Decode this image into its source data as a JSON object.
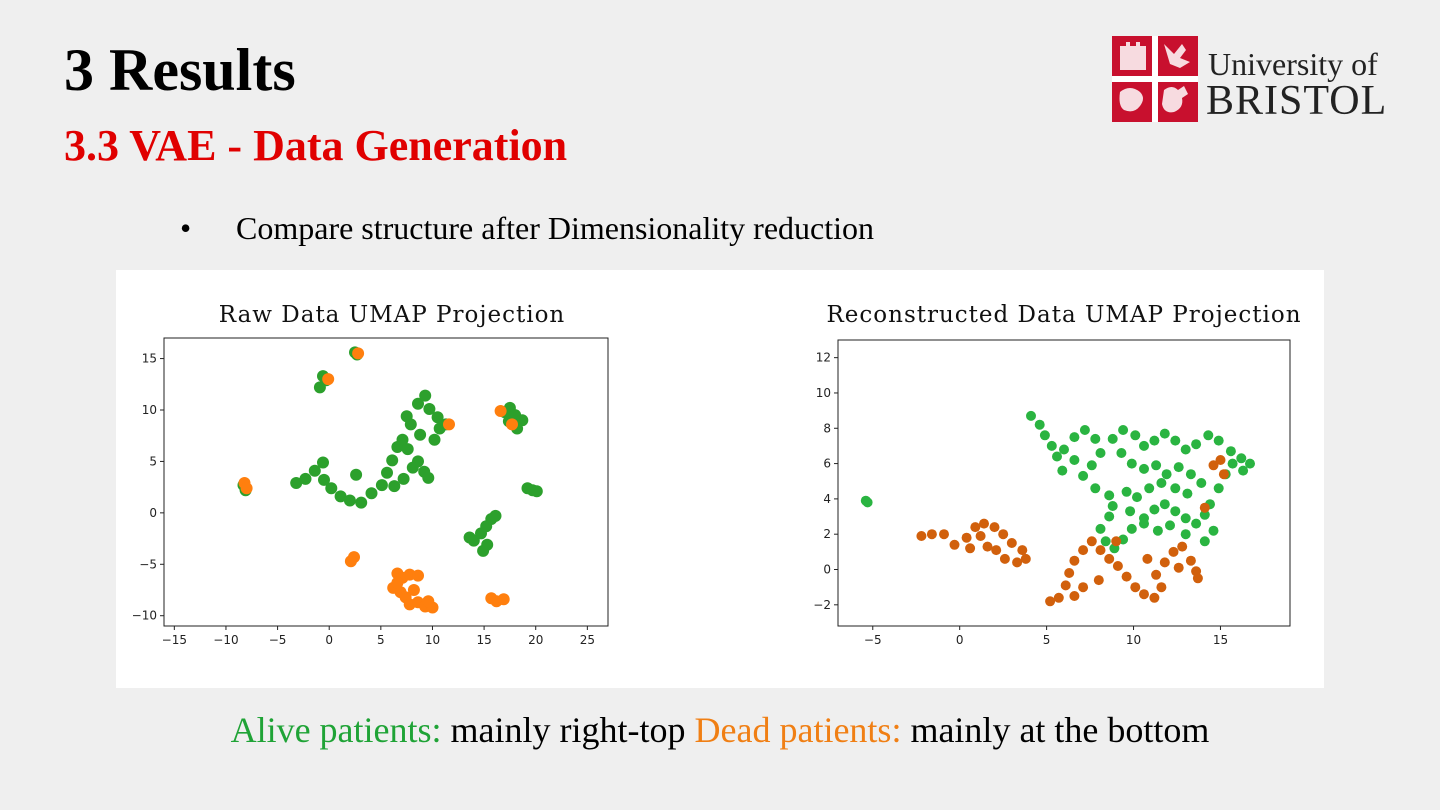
{
  "slide": {
    "title": "3 Results",
    "subtitle_bold": "3.3 VAE -",
    "subtitle_rest": "Data Generation",
    "bullet_symbol": "•",
    "bullet_text": "Compare structure after Dimensionality reduction"
  },
  "logo": {
    "line1": "University of",
    "line2": "BRISTOL",
    "color": "#c8102e"
  },
  "caption": {
    "alive_label": "Alive patients:",
    "alive_rest": " mainly right-top ",
    "dead_label": "Dead patients:",
    "dead_rest": " mainly at the bottom",
    "alive_color": "#1fa336",
    "dead_color": "#f07f14"
  },
  "chart_data": [
    {
      "type": "scatter",
      "title": "Raw Data UMAP Projection",
      "xlim": [
        -16,
        27
      ],
      "ylim": [
        -11,
        17
      ],
      "xticks": [
        -15,
        -10,
        -5,
        0,
        5,
        10,
        15,
        20,
        25
      ],
      "yticks": [
        -10,
        -5,
        0,
        5,
        10,
        15
      ],
      "grid": false,
      "series": [
        {
          "color": "#2ca02c",
          "points": [
            [
              -8.3,
              2.7
            ],
            [
              -8.1,
              2.2
            ],
            [
              -0.9,
              12.2
            ],
            [
              -0.6,
              13.3
            ],
            [
              -0.3,
              12.9
            ],
            [
              2.5,
              15.6
            ],
            [
              2.7,
              15.4
            ],
            [
              2.6,
              3.7
            ],
            [
              11.3,
              8.6
            ],
            [
              17.0,
              9.8
            ],
            [
              17.5,
              10.2
            ],
            [
              18.0,
              9.5
            ],
            [
              18.7,
              9.0
            ],
            [
              18.2,
              8.2
            ],
            [
              17.4,
              8.9
            ],
            [
              19.2,
              2.4
            ],
            [
              19.7,
              2.2
            ],
            [
              20.1,
              2.1
            ],
            [
              -3.2,
              2.9
            ],
            [
              -2.3,
              3.3
            ],
            [
              -1.4,
              4.1
            ],
            [
              -0.6,
              4.9
            ],
            [
              -0.5,
              3.2
            ],
            [
              0.2,
              2.4
            ],
            [
              1.1,
              1.6
            ],
            [
              2.0,
              1.2
            ],
            [
              3.1,
              1.0
            ],
            [
              4.1,
              1.9
            ],
            [
              5.1,
              2.7
            ],
            [
              5.6,
              3.9
            ],
            [
              6.1,
              5.1
            ],
            [
              6.6,
              6.4
            ],
            [
              7.1,
              7.1
            ],
            [
              7.6,
              6.2
            ],
            [
              8.6,
              5.0
            ],
            [
              9.2,
              4.0
            ],
            [
              9.6,
              3.4
            ],
            [
              8.1,
              4.4
            ],
            [
              7.2,
              3.3
            ],
            [
              6.3,
              2.6
            ],
            [
              7.9,
              8.6
            ],
            [
              8.6,
              10.6
            ],
            [
              9.3,
              11.4
            ],
            [
              9.7,
              10.1
            ],
            [
              10.5,
              9.3
            ],
            [
              10.7,
              8.2
            ],
            [
              10.2,
              7.1
            ],
            [
              8.8,
              7.6
            ],
            [
              7.5,
              9.4
            ],
            [
              14.0,
              -2.7
            ],
            [
              14.7,
              -2.0
            ],
            [
              15.2,
              -1.3
            ],
            [
              15.7,
              -0.6
            ],
            [
              16.1,
              -0.3
            ],
            [
              15.3,
              -3.1
            ],
            [
              14.9,
              -3.7
            ],
            [
              13.6,
              -2.4
            ]
          ]
        },
        {
          "color": "#ff7f0e",
          "points": [
            [
              -8.2,
              2.9
            ],
            [
              -8.0,
              2.4
            ],
            [
              -0.1,
              13.0
            ],
            [
              2.8,
              15.5
            ],
            [
              11.6,
              8.6
            ],
            [
              16.6,
              9.9
            ],
            [
              17.7,
              8.6
            ],
            [
              2.4,
              -4.3
            ],
            [
              2.1,
              -4.7
            ],
            [
              6.6,
              -5.9
            ],
            [
              7.1,
              -6.3
            ],
            [
              7.8,
              -6.0
            ],
            [
              8.6,
              -6.1
            ],
            [
              6.2,
              -7.3
            ],
            [
              6.9,
              -7.7
            ],
            [
              7.4,
              -8.2
            ],
            [
              7.8,
              -8.9
            ],
            [
              8.6,
              -8.7
            ],
            [
              9.3,
              -9.1
            ],
            [
              10.0,
              -9.2
            ],
            [
              9.6,
              -8.6
            ],
            [
              8.2,
              -7.5
            ],
            [
              6.6,
              -6.8
            ],
            [
              15.7,
              -8.3
            ],
            [
              16.2,
              -8.6
            ],
            [
              16.9,
              -8.4
            ]
          ]
        }
      ]
    },
    {
      "type": "scatter",
      "title": "Reconstructed Data UMAP Projection",
      "xlim": [
        -7,
        19
      ],
      "ylim": [
        -3.2,
        13
      ],
      "xticks": [
        -5,
        0,
        5,
        10,
        15
      ],
      "yticks": [
        -2,
        0,
        2,
        4,
        6,
        8,
        10,
        12
      ],
      "grid": false,
      "series": [
        {
          "color": "#2ab441",
          "points": [
            [
              -5.4,
              3.9
            ],
            [
              -5.3,
              3.8
            ],
            [
              4.1,
              8.7
            ],
            [
              4.6,
              8.2
            ],
            [
              4.9,
              7.6
            ],
            [
              5.3,
              7.0
            ],
            [
              5.6,
              6.4
            ],
            [
              6.0,
              6.8
            ],
            [
              6.6,
              7.5
            ],
            [
              7.2,
              7.9
            ],
            [
              7.8,
              7.4
            ],
            [
              8.1,
              6.6
            ],
            [
              7.6,
              5.9
            ],
            [
              7.1,
              5.3
            ],
            [
              7.8,
              4.6
            ],
            [
              8.6,
              4.2
            ],
            [
              8.8,
              3.6
            ],
            [
              8.6,
              3.0
            ],
            [
              8.1,
              2.3
            ],
            [
              8.4,
              1.6
            ],
            [
              8.9,
              1.2
            ],
            [
              9.4,
              1.7
            ],
            [
              9.9,
              2.3
            ],
            [
              10.6,
              2.9
            ],
            [
              11.2,
              3.4
            ],
            [
              11.8,
              3.7
            ],
            [
              12.4,
              3.3
            ],
            [
              13.0,
              2.9
            ],
            [
              13.6,
              2.6
            ],
            [
              14.1,
              3.1
            ],
            [
              14.4,
              3.7
            ],
            [
              14.9,
              4.6
            ],
            [
              15.3,
              5.4
            ],
            [
              15.7,
              6.0
            ],
            [
              16.2,
              6.3
            ],
            [
              16.7,
              6.0
            ],
            [
              16.3,
              5.6
            ],
            [
              15.6,
              6.7
            ],
            [
              14.9,
              7.3
            ],
            [
              14.3,
              7.6
            ],
            [
              13.6,
              7.1
            ],
            [
              13.0,
              6.8
            ],
            [
              12.4,
              7.3
            ],
            [
              11.8,
              7.7
            ],
            [
              11.2,
              7.3
            ],
            [
              10.6,
              7.0
            ],
            [
              10.1,
              7.6
            ],
            [
              9.4,
              7.9
            ],
            [
              8.8,
              7.4
            ],
            [
              9.3,
              6.6
            ],
            [
              9.9,
              6.0
            ],
            [
              10.6,
              5.7
            ],
            [
              11.3,
              5.9
            ],
            [
              11.9,
              5.4
            ],
            [
              12.6,
              5.8
            ],
            [
              13.3,
              5.4
            ],
            [
              13.9,
              4.9
            ],
            [
              13.1,
              4.3
            ],
            [
              12.4,
              4.6
            ],
            [
              11.6,
              4.9
            ],
            [
              10.9,
              4.6
            ],
            [
              10.2,
              4.1
            ],
            [
              9.6,
              4.4
            ],
            [
              9.8,
              3.3
            ],
            [
              10.6,
              2.6
            ],
            [
              11.4,
              2.2
            ],
            [
              12.1,
              2.5
            ],
            [
              14.6,
              2.2
            ],
            [
              14.1,
              1.6
            ],
            [
              6.6,
              6.2
            ],
            [
              5.9,
              5.6
            ],
            [
              13.0,
              2.0
            ]
          ]
        },
        {
          "color": "#d1600c",
          "points": [
            [
              -2.2,
              1.9
            ],
            [
              -1.6,
              2.0
            ],
            [
              -0.9,
              2.0
            ],
            [
              -0.3,
              1.4
            ],
            [
              0.4,
              1.8
            ],
            [
              0.9,
              2.4
            ],
            [
              1.4,
              2.6
            ],
            [
              2.0,
              2.4
            ],
            [
              2.5,
              2.0
            ],
            [
              3.0,
              1.5
            ],
            [
              3.6,
              1.1
            ],
            [
              3.8,
              0.6
            ],
            [
              3.3,
              0.4
            ],
            [
              2.6,
              0.6
            ],
            [
              2.1,
              1.1
            ],
            [
              1.6,
              1.3
            ],
            [
              1.2,
              1.9
            ],
            [
              0.6,
              1.2
            ],
            [
              5.2,
              -1.8
            ],
            [
              5.7,
              -1.6
            ],
            [
              6.1,
              -0.9
            ],
            [
              6.3,
              -0.2
            ],
            [
              6.6,
              0.5
            ],
            [
              7.1,
              1.1
            ],
            [
              7.6,
              1.6
            ],
            [
              8.1,
              1.1
            ],
            [
              8.6,
              0.6
            ],
            [
              9.1,
              0.2
            ],
            [
              9.6,
              -0.4
            ],
            [
              10.1,
              -1.0
            ],
            [
              10.6,
              -1.4
            ],
            [
              11.2,
              -1.6
            ],
            [
              11.6,
              -1.0
            ],
            [
              11.3,
              -0.3
            ],
            [
              11.8,
              0.4
            ],
            [
              12.3,
              1.0
            ],
            [
              12.8,
              1.3
            ],
            [
              13.3,
              0.5
            ],
            [
              13.6,
              -0.1
            ],
            [
              13.7,
              -0.5
            ],
            [
              12.6,
              0.1
            ],
            [
              7.1,
              -1.0
            ],
            [
              6.6,
              -1.5
            ],
            [
              8.0,
              -0.6
            ],
            [
              9.0,
              1.6
            ],
            [
              10.8,
              0.6
            ],
            [
              15.0,
              6.2
            ],
            [
              15.2,
              5.4
            ],
            [
              14.6,
              5.9
            ],
            [
              14.1,
              3.5
            ]
          ]
        }
      ]
    }
  ]
}
